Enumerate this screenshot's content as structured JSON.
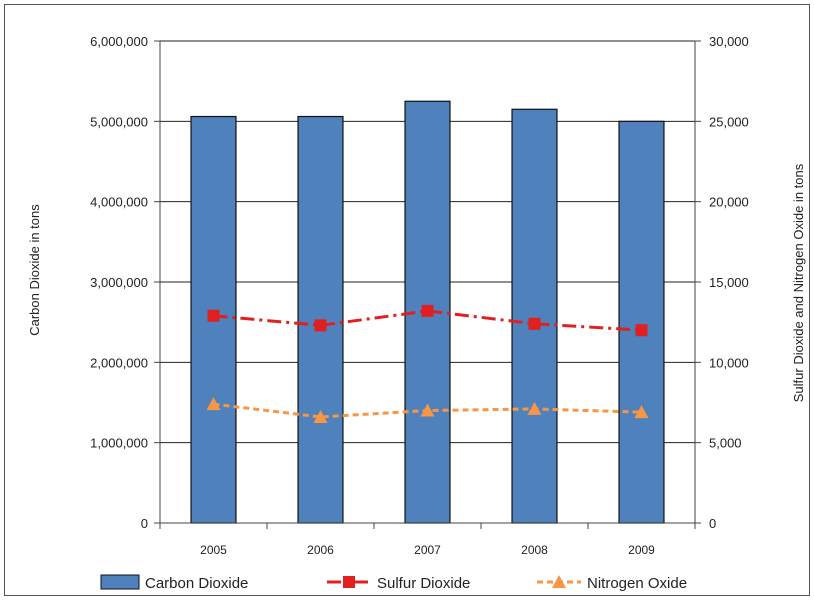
{
  "chart_data": {
    "type": "bar",
    "categories": [
      "2005",
      "2006",
      "2007",
      "2008",
      "2009"
    ],
    "y_left": {
      "label": "Carbon Dioxide in tons",
      "lim": [
        0,
        6000000
      ],
      "ticks": [
        "0",
        "1,000,000",
        "2,000,000",
        "3,000,000",
        "4,000,000",
        "5,000,000",
        "6,000,000"
      ]
    },
    "y_right": {
      "label": "Sulfur Dioxide and Nitrogen Oxide in tons",
      "lim": [
        0,
        30000
      ],
      "ticks": [
        "0",
        "5,000",
        "10,000",
        "15,000",
        "20,000",
        "25,000",
        "30,000"
      ]
    },
    "grid": true,
    "legend_position": "bottom",
    "series": [
      {
        "name": "Carbon Dioxide",
        "type": "bar",
        "axis": "left",
        "color": "#4f81bd",
        "values": [
          5060000,
          5060000,
          5250000,
          5150000,
          5000000
        ]
      },
      {
        "name": "Sulfur Dioxide",
        "type": "line",
        "axis": "right",
        "color": "#e02020",
        "marker": "square",
        "style": "dash-dot",
        "values": [
          12900,
          12300,
          13200,
          12400,
          12000
        ]
      },
      {
        "name": "Nitrogen Oxide",
        "type": "line",
        "axis": "right",
        "color": "#f79646",
        "marker": "triangle",
        "style": "dashed",
        "values": [
          7400,
          6600,
          7000,
          7100,
          6900
        ]
      }
    ]
  }
}
